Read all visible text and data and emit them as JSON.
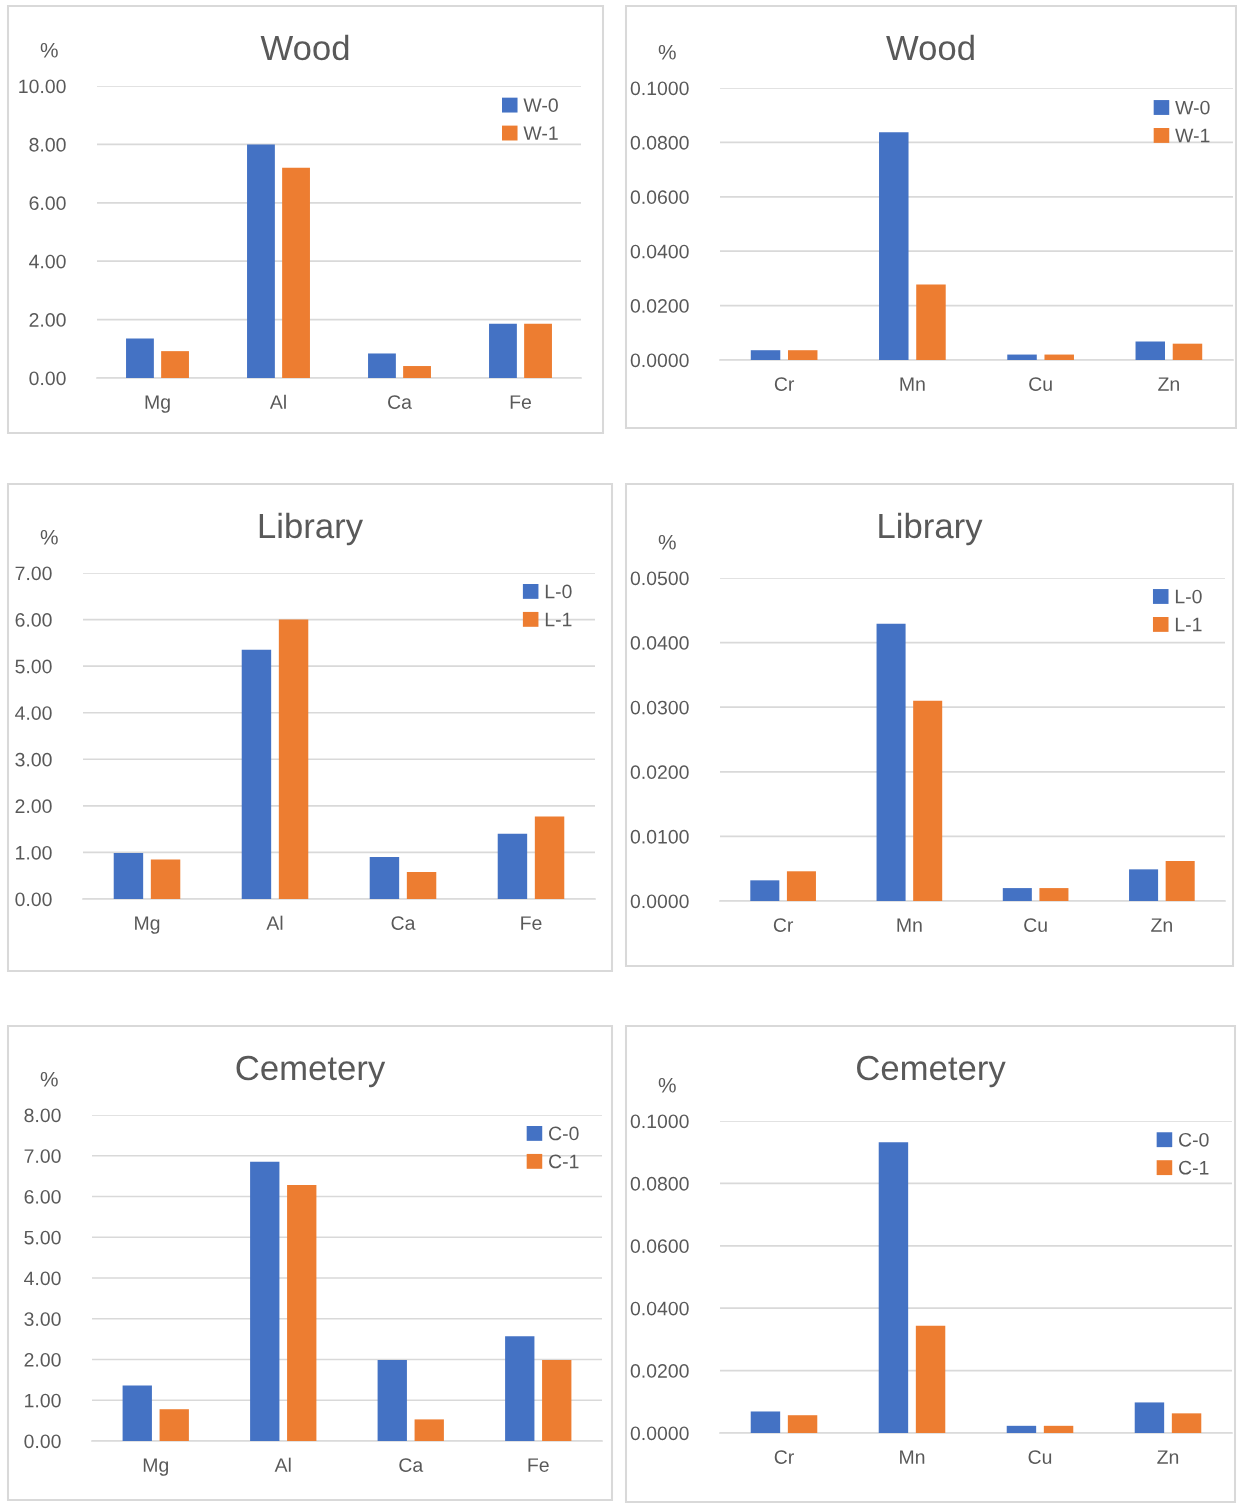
{
  "chart_data": [
    {
      "type": "bar",
      "title": "Wood",
      "ylabel": "%",
      "categories": [
        "Mg",
        "Al",
        "Ca",
        "Fe"
      ],
      "ylim": [
        0,
        10
      ],
      "yticks": [
        {
          "value": 0,
          "label": "0.00"
        },
        {
          "value": 2,
          "label": "2.00"
        },
        {
          "value": 4,
          "label": "4.00"
        },
        {
          "value": 6,
          "label": "6.00"
        },
        {
          "value": 8,
          "label": "8.00"
        },
        {
          "value": 10,
          "label": "10.00"
        }
      ],
      "grid": "y",
      "legend": "top right",
      "series": [
        {
          "name": "W-0",
          "color": "#4472c4",
          "values": [
            1.35,
            8.0,
            0.84,
            1.86
          ]
        },
        {
          "name": "W-1",
          "color": "#ed7d31",
          "values": [
            0.92,
            7.2,
            0.41,
            1.86
          ]
        }
      ]
    },
    {
      "type": "bar",
      "title": "Wood",
      "ylabel": "%",
      "categories": [
        "Cr",
        "Mn",
        "Cu",
        "Zn"
      ],
      "ylim": [
        0,
        0.1
      ],
      "yticks": [
        {
          "value": 0,
          "label": "0.0000"
        },
        {
          "value": 0.02,
          "label": "0.0200"
        },
        {
          "value": 0.04,
          "label": "0.0400"
        },
        {
          "value": 0.06,
          "label": "0.0600"
        },
        {
          "value": 0.08,
          "label": "0.0800"
        },
        {
          "value": 0.1,
          "label": "0.1000"
        }
      ],
      "grid": "y",
      "legend": "top right",
      "series": [
        {
          "name": "W-0",
          "color": "#4472c4",
          "values": [
            0.0036,
            0.0837,
            0.002,
            0.0068
          ]
        },
        {
          "name": "W-1",
          "color": "#ed7d31",
          "values": [
            0.0036,
            0.0278,
            0.002,
            0.006
          ]
        }
      ]
    },
    {
      "type": "bar",
      "title": "Library",
      "ylabel": "%",
      "categories": [
        "Mg",
        "Al",
        "Ca",
        "Fe"
      ],
      "ylim": [
        0,
        7
      ],
      "yticks": [
        {
          "value": 0,
          "label": "0.00"
        },
        {
          "value": 1,
          "label": "1.00"
        },
        {
          "value": 2,
          "label": "2.00"
        },
        {
          "value": 3,
          "label": "3.00"
        },
        {
          "value": 4,
          "label": "4.00"
        },
        {
          "value": 5,
          "label": "5.00"
        },
        {
          "value": 6,
          "label": "6.00"
        },
        {
          "value": 7,
          "label": "7.00"
        }
      ],
      "grid": "y",
      "legend": "top right",
      "series": [
        {
          "name": "L-0",
          "color": "#4472c4",
          "values": [
            0.99,
            5.35,
            0.9,
            1.4
          ]
        },
        {
          "name": "L-1",
          "color": "#ed7d31",
          "values": [
            0.85,
            6.0,
            0.58,
            1.77
          ]
        }
      ]
    },
    {
      "type": "bar",
      "title": "Library",
      "ylabel": "%",
      "categories": [
        "Cr",
        "Mn",
        "Cu",
        "Zn"
      ],
      "ylim": [
        0,
        0.05
      ],
      "yticks": [
        {
          "value": 0,
          "label": "0.0000"
        },
        {
          "value": 0.01,
          "label": "0.0100"
        },
        {
          "value": 0.02,
          "label": "0.0200"
        },
        {
          "value": 0.03,
          "label": "0.0300"
        },
        {
          "value": 0.04,
          "label": "0.0400"
        },
        {
          "value": 0.05,
          "label": "0.0500"
        }
      ],
      "grid": "y",
      "legend": "top right",
      "series": [
        {
          "name": "L-0",
          "color": "#4472c4",
          "values": [
            0.0032,
            0.0429,
            0.002,
            0.0049
          ]
        },
        {
          "name": "L-1",
          "color": "#ed7d31",
          "values": [
            0.0046,
            0.031,
            0.002,
            0.0062
          ]
        }
      ]
    },
    {
      "type": "bar",
      "title": "Cemetery",
      "ylabel": "%",
      "categories": [
        "Mg",
        "Al",
        "Ca",
        "Fe"
      ],
      "ylim": [
        0,
        8
      ],
      "yticks": [
        {
          "value": 0,
          "label": "0.00"
        },
        {
          "value": 1,
          "label": "1.00"
        },
        {
          "value": 2,
          "label": "2.00"
        },
        {
          "value": 3,
          "label": "3.00"
        },
        {
          "value": 4,
          "label": "4.00"
        },
        {
          "value": 5,
          "label": "5.00"
        },
        {
          "value": 6,
          "label": "6.00"
        },
        {
          "value": 7,
          "label": "7.00"
        },
        {
          "value": 8,
          "label": "8.00"
        }
      ],
      "grid": "y",
      "legend": "top right",
      "series": [
        {
          "name": "C-0",
          "color": "#4472c4",
          "values": [
            1.36,
            6.85,
            1.99,
            2.57
          ]
        },
        {
          "name": "C-1",
          "color": "#ed7d31",
          "values": [
            0.78,
            6.28,
            0.53,
            1.99
          ]
        }
      ]
    },
    {
      "type": "bar",
      "title": "Cemetery",
      "ylabel": "%",
      "categories": [
        "Cr",
        "Mn",
        "Cu",
        "Zn"
      ],
      "ylim": [
        0,
        0.1
      ],
      "yticks": [
        {
          "value": 0,
          "label": "0.0000"
        },
        {
          "value": 0.02,
          "label": "0.0200"
        },
        {
          "value": 0.04,
          "label": "0.0400"
        },
        {
          "value": 0.06,
          "label": "0.0600"
        },
        {
          "value": 0.08,
          "label": "0.0800"
        },
        {
          "value": 0.1,
          "label": "0.1000"
        }
      ],
      "grid": "y",
      "legend": "top right",
      "series": [
        {
          "name": "C-0",
          "color": "#4472c4",
          "values": [
            0.0069,
            0.0932,
            0.0023,
            0.0098
          ]
        },
        {
          "name": "C-1",
          "color": "#ed7d31",
          "values": [
            0.0057,
            0.0344,
            0.0023,
            0.0063
          ]
        }
      ]
    }
  ]
}
